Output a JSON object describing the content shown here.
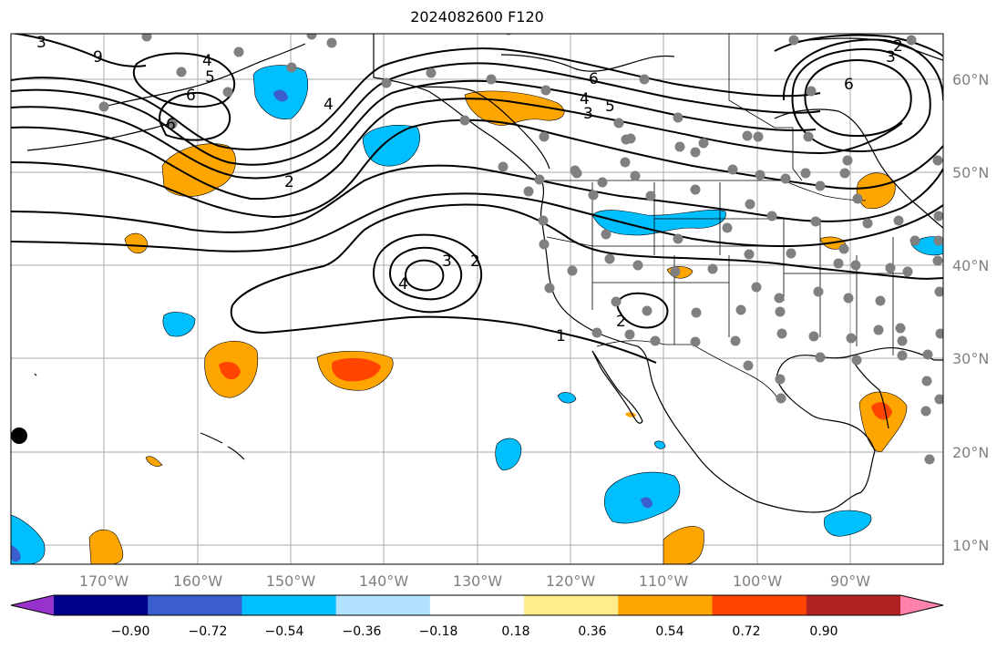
{
  "title": "2024082600 F120",
  "colors": {
    "grid": "#aaaaaa",
    "coast": "#000000",
    "station": "#808080",
    "contour": "#000000",
    "pos_low": "#ffa500",
    "pos_high": "#ff4500",
    "neg_low": "#00bfff",
    "neg_mid": "#3a5fcd"
  },
  "latitude_labels": [
    "60°N",
    "50°N",
    "40°N",
    "30°N",
    "20°N",
    "10°N"
  ],
  "longitude_labels": [
    "170°W",
    "160°W",
    "150°W",
    "140°W",
    "130°W",
    "120°W",
    "110°W",
    "100°W",
    "90°W"
  ],
  "contour_labels": [
    "4",
    "5",
    "6",
    "9",
    "6",
    "2",
    "4",
    "3",
    "2",
    "1",
    "2",
    "6",
    "5",
    "4",
    "3",
    "3",
    "2",
    "6",
    "3",
    "4"
  ],
  "colorbar": {
    "tick_labels": [
      "−0.90",
      "−0.72",
      "−0.54",
      "−0.36",
      "−0.18",
      "0.18",
      "0.36",
      "0.54",
      "0.72",
      "0.90"
    ],
    "bins": [
      "#9932cc",
      "#00008b",
      "#3a5fcd",
      "#00bfff",
      "#b0e2ff",
      "#ffffff",
      "#ffec8b",
      "#ffa500",
      "#ff4500",
      "#b22222",
      "#ff82ab"
    ]
  }
}
